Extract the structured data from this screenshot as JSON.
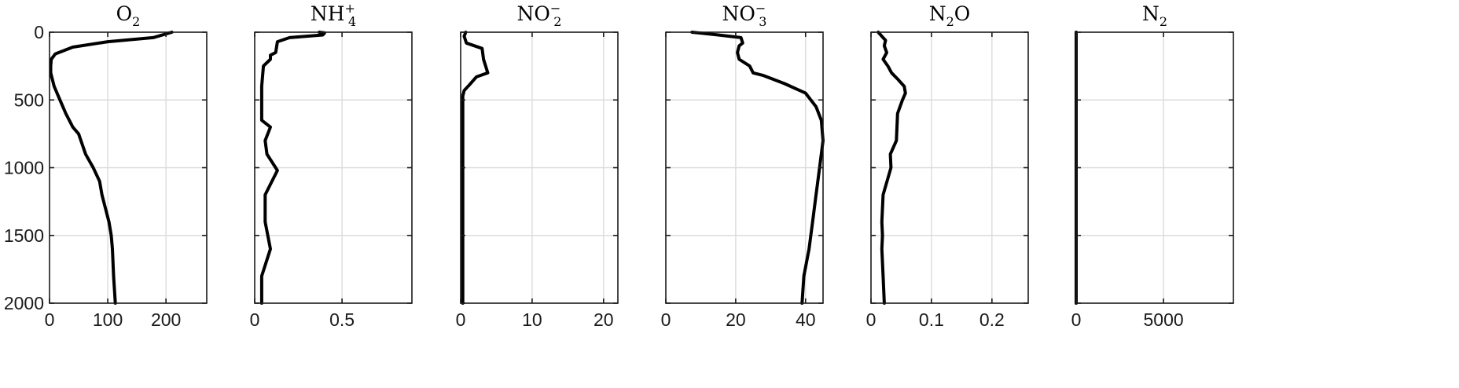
{
  "chart_data": [
    {
      "type": "line",
      "title": "O2",
      "title_main": "O",
      "title_sub": "2",
      "title_sup": "",
      "title_tail": "",
      "xlim": [
        0,
        270
      ],
      "ylim": [
        0,
        2000
      ],
      "y_reversed": true,
      "xticks": [
        0,
        100,
        200
      ],
      "xtick_labels": [
        "0",
        "100",
        "200"
      ],
      "yticks": [
        0,
        500,
        1000,
        1500,
        2000
      ],
      "ytick_labels": [
        "0",
        "500",
        "1000",
        "1500",
        "2000"
      ],
      "grid": true,
      "series": [
        {
          "x": [
            210,
            178,
            100,
            40,
            10,
            3,
            2,
            2,
            8,
            18,
            28,
            40,
            50,
            62,
            75,
            86,
            90,
            102,
            106,
            108,
            110,
            113
          ],
          "y": [
            0,
            40,
            70,
            110,
            160,
            200,
            250,
            300,
            400,
            500,
            600,
            700,
            750,
            900,
            1000,
            1100,
            1200,
            1400,
            1500,
            1600,
            1800,
            2000
          ]
        }
      ]
    },
    {
      "type": "line",
      "title": "NH4+",
      "title_main": "NH",
      "title_sub": "4",
      "title_sup": "+",
      "title_tail": "",
      "xlim": [
        0,
        0.9
      ],
      "ylim": [
        0,
        2000
      ],
      "y_reversed": true,
      "xticks": [
        0,
        0.5
      ],
      "xtick_labels": [
        "0",
        "0.5"
      ],
      "yticks": [
        0,
        500,
        1000,
        1500,
        2000
      ],
      "ytick_labels": [],
      "grid": true,
      "series": [
        {
          "x": [
            0.37,
            0.4,
            0.39,
            0.2,
            0.13,
            0.12,
            0.09,
            0.09,
            0.05,
            0.04,
            0.04,
            0.04,
            0.04,
            0.09,
            0.06,
            0.07,
            0.13,
            0.06,
            0.06,
            0.09,
            0.04,
            0.04
          ],
          "y": [
            0,
            5,
            20,
            40,
            70,
            150,
            170,
            200,
            250,
            400,
            450,
            500,
            650,
            700,
            800,
            900,
            1020,
            1200,
            1400,
            1600,
            1800,
            2000
          ]
        }
      ]
    },
    {
      "type": "line",
      "title": "NO2-",
      "title_main": "NO",
      "title_sub": "2",
      "title_sup": "−",
      "title_tail": "",
      "xlim": [
        0,
        22
      ],
      "ylim": [
        0,
        2000
      ],
      "y_reversed": true,
      "xticks": [
        0,
        10,
        20
      ],
      "xtick_labels": [
        "0",
        "10",
        "20"
      ],
      "yticks": [
        0,
        500,
        1000,
        1500,
        2000
      ],
      "ytick_labels": [],
      "grid": true,
      "series": [
        {
          "x": [
            0.7,
            0.5,
            0.8,
            3.0,
            3.2,
            3.8,
            2.2,
            1.2,
            0.5,
            0.3,
            0.3,
            0.3,
            0.3
          ],
          "y": [
            0,
            30,
            80,
            120,
            200,
            300,
            330,
            390,
            430,
            470,
            500,
            1000,
            2000
          ]
        }
      ]
    },
    {
      "type": "line",
      "title": "NO3-",
      "title_main": "NO",
      "title_sub": "3",
      "title_sup": "−",
      "title_tail": "",
      "xlim": [
        0,
        45
      ],
      "ylim": [
        0,
        2000
      ],
      "y_reversed": true,
      "xticks": [
        0,
        20,
        40
      ],
      "xtick_labels": [
        "0",
        "20",
        "40"
      ],
      "yticks": [
        0,
        500,
        1000,
        1500,
        2000
      ],
      "ytick_labels": [],
      "grid": true,
      "series": [
        {
          "x": [
            7.5,
            15,
            21.5,
            22,
            21,
            20.5,
            21,
            24,
            25,
            28,
            34,
            40,
            43,
            44.5,
            45,
            44,
            43,
            42,
            41,
            39.5,
            39
          ],
          "y": [
            0,
            20,
            40,
            80,
            100,
            150,
            200,
            250,
            300,
            320,
            380,
            450,
            550,
            650,
            800,
            1000,
            1200,
            1400,
            1600,
            1800,
            2000
          ]
        }
      ]
    },
    {
      "type": "line",
      "title": "N2O",
      "title_main": "N",
      "title_sub": "2",
      "title_sup": "",
      "title_tail": "O",
      "xlim": [
        0,
        0.26
      ],
      "ylim": [
        0,
        2000
      ],
      "y_reversed": true,
      "xticks": [
        0,
        0.1,
        0.2
      ],
      "xtick_labels": [
        "0",
        "0.1",
        "0.2"
      ],
      "yticks": [
        0,
        500,
        1000,
        1500,
        2000
      ],
      "ytick_labels": [],
      "grid": true,
      "series": [
        {
          "x": [
            0.012,
            0.018,
            0.024,
            0.022,
            0.026,
            0.02,
            0.028,
            0.034,
            0.045,
            0.055,
            0.057,
            0.052,
            0.044,
            0.042,
            0.032,
            0.033,
            0.02,
            0.018,
            0.019,
            0.018,
            0.02,
            0.022
          ],
          "y": [
            0,
            30,
            60,
            100,
            150,
            200,
            250,
            300,
            350,
            400,
            450,
            500,
            600,
            800,
            900,
            1000,
            1200,
            1400,
            1500,
            1600,
            1800,
            2000
          ]
        }
      ]
    },
    {
      "type": "line",
      "title": "N2",
      "title_main": "N",
      "title_sub": "2",
      "title_sup": "",
      "title_tail": "",
      "xlim": [
        0,
        9000
      ],
      "ylim": [
        0,
        2000
      ],
      "y_reversed": true,
      "xticks": [
        0,
        5000
      ],
      "xtick_labels": [
        "0",
        "5000"
      ],
      "yticks": [
        0,
        500,
        1000,
        1500,
        2000
      ],
      "ytick_labels": [],
      "grid": true,
      "series": [
        {
          "x": [
            0,
            0
          ],
          "y": [
            0,
            2000
          ]
        }
      ]
    }
  ]
}
